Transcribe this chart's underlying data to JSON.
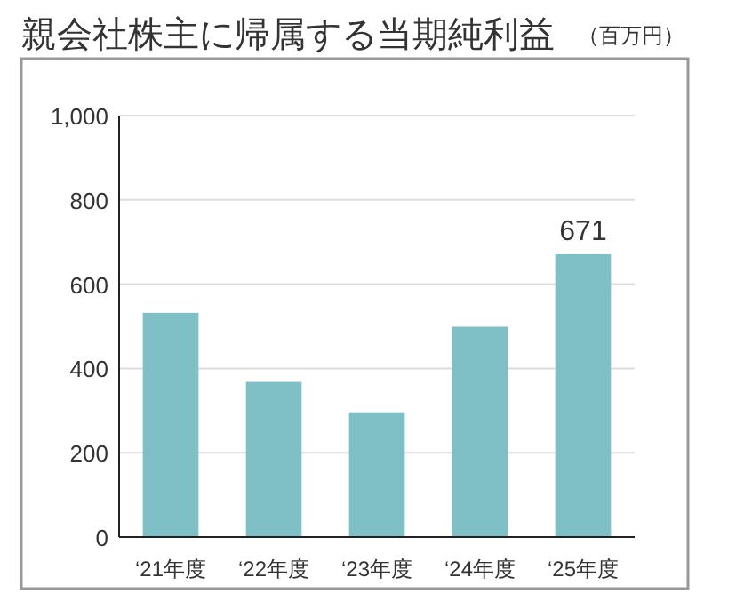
{
  "chart_data": {
    "type": "bar",
    "title": "親会社株主に帰属する当期純利益",
    "ylabel": "（百万円）",
    "categories": [
      "‘21年度",
      "‘22年度",
      "‘23年度",
      "‘24年度",
      "‘25年度"
    ],
    "values": [
      532,
      368,
      296,
      499,
      671
    ],
    "value_labels": [
      null,
      null,
      null,
      null,
      "671"
    ],
    "color": "#7fbfc6",
    "ylim": [
      0,
      1000
    ],
    "yticks": [
      0,
      200,
      400,
      600,
      800,
      {
        "value": 1000,
        "label": "1,000"
      }
    ],
    "grid": "y"
  }
}
